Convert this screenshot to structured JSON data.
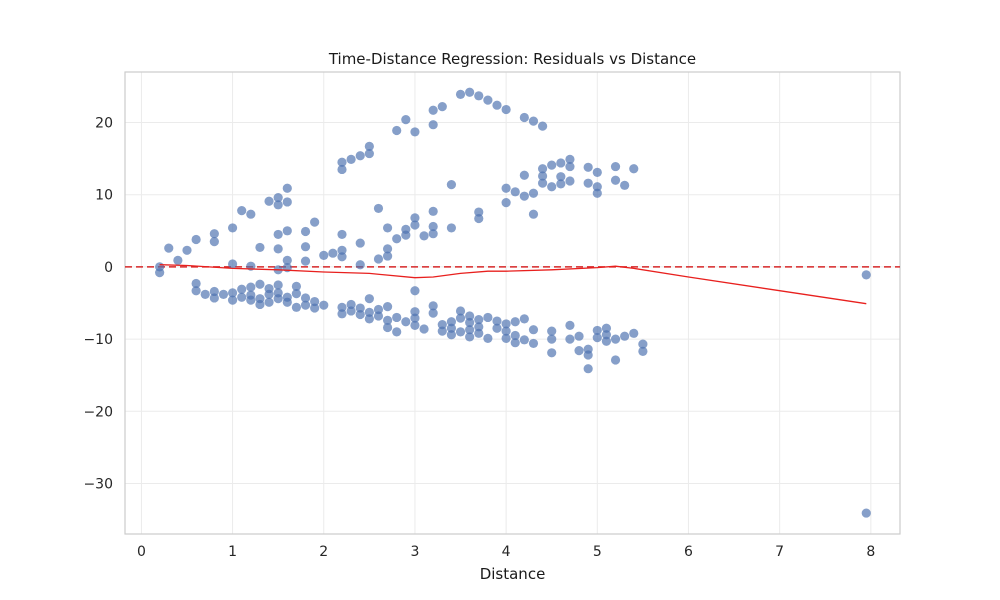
{
  "chart_data": {
    "type": "scatter",
    "title": "Time-Distance Regression: Residuals vs Distance",
    "xlabel": "Distance",
    "ylabel": "",
    "xlim": [
      -0.18,
      8.32
    ],
    "ylim": [
      -37.0,
      27.0
    ],
    "xticks": [
      0,
      1,
      2,
      3,
      4,
      5,
      6,
      7,
      8
    ],
    "yticks": [
      -30,
      -20,
      -10,
      0,
      10,
      20
    ],
    "grid": true,
    "reference_line": {
      "y": 0,
      "style": "dashed",
      "color": "#d62728"
    },
    "colors": {
      "points": "#4c72b0",
      "smooth": "#e8201e",
      "reference": "#d62728",
      "grid": "#ebebeb",
      "frame": "#cccccc"
    },
    "series": [
      {
        "type": "scatter",
        "points": [
          [
            0.2,
            0.0
          ],
          [
            0.2,
            -0.8
          ],
          [
            0.3,
            2.6
          ],
          [
            0.4,
            0.9
          ],
          [
            0.5,
            2.3
          ],
          [
            0.6,
            3.8
          ],
          [
            0.6,
            -2.3
          ],
          [
            0.6,
            -3.3
          ],
          [
            0.7,
            -3.8
          ],
          [
            0.8,
            4.6
          ],
          [
            0.8,
            3.5
          ],
          [
            0.8,
            -3.4
          ],
          [
            0.8,
            -4.3
          ],
          [
            0.9,
            -3.8
          ],
          [
            1.0,
            5.4
          ],
          [
            1.0,
            0.4
          ],
          [
            1.0,
            -3.6
          ],
          [
            1.0,
            -4.6
          ],
          [
            1.1,
            7.8
          ],
          [
            1.1,
            -3.1
          ],
          [
            1.1,
            -4.2
          ],
          [
            1.2,
            7.3
          ],
          [
            1.2,
            0.1
          ],
          [
            1.2,
            -2.8
          ],
          [
            1.2,
            -3.9
          ],
          [
            1.2,
            -4.6
          ],
          [
            1.3,
            2.7
          ],
          [
            1.3,
            -2.4
          ],
          [
            1.3,
            -4.4
          ],
          [
            1.3,
            -5.2
          ],
          [
            1.4,
            9.1
          ],
          [
            1.4,
            -3.0
          ],
          [
            1.4,
            -3.8
          ],
          [
            1.4,
            -4.9
          ],
          [
            1.5,
            9.6
          ],
          [
            1.5,
            8.6
          ],
          [
            1.5,
            4.5
          ],
          [
            1.5,
            2.5
          ],
          [
            1.5,
            -0.4
          ],
          [
            1.5,
            -2.5
          ],
          [
            1.5,
            -3.6
          ],
          [
            1.5,
            -4.4
          ],
          [
            1.6,
            10.9
          ],
          [
            1.6,
            9.0
          ],
          [
            1.6,
            5.0
          ],
          [
            1.6,
            0.9
          ],
          [
            1.6,
            -0.1
          ],
          [
            1.6,
            -4.2
          ],
          [
            1.6,
            -4.9
          ],
          [
            1.7,
            -2.7
          ],
          [
            1.7,
            -3.7
          ],
          [
            1.7,
            -5.6
          ],
          [
            1.8,
            4.9
          ],
          [
            1.8,
            2.8
          ],
          [
            1.8,
            0.8
          ],
          [
            1.8,
            -4.3
          ],
          [
            1.8,
            -5.3
          ],
          [
            1.9,
            6.2
          ],
          [
            1.9,
            -4.8
          ],
          [
            1.9,
            -5.7
          ],
          [
            2.0,
            1.6
          ],
          [
            2.0,
            -5.3
          ],
          [
            2.1,
            1.9
          ],
          [
            2.2,
            14.5
          ],
          [
            2.2,
            13.5
          ],
          [
            2.2,
            4.5
          ],
          [
            2.2,
            2.3
          ],
          [
            2.2,
            1.4
          ],
          [
            2.2,
            -5.6
          ],
          [
            2.2,
            -6.5
          ],
          [
            2.3,
            14.9
          ],
          [
            2.3,
            -5.2
          ],
          [
            2.3,
            -6.1
          ],
          [
            2.4,
            15.4
          ],
          [
            2.4,
            3.3
          ],
          [
            2.4,
            0.3
          ],
          [
            2.4,
            -5.7
          ],
          [
            2.4,
            -6.6
          ],
          [
            2.5,
            16.7
          ],
          [
            2.5,
            15.7
          ],
          [
            2.5,
            -4.4
          ],
          [
            2.5,
            -6.3
          ],
          [
            2.5,
            -7.2
          ],
          [
            2.6,
            8.1
          ],
          [
            2.6,
            1.1
          ],
          [
            2.6,
            -5.9
          ],
          [
            2.6,
            -6.8
          ],
          [
            2.7,
            5.4
          ],
          [
            2.7,
            2.5
          ],
          [
            2.7,
            1.5
          ],
          [
            2.7,
            -5.5
          ],
          [
            2.7,
            -7.4
          ],
          [
            2.7,
            -8.4
          ],
          [
            2.8,
            18.9
          ],
          [
            2.8,
            3.9
          ],
          [
            2.8,
            -7.0
          ],
          [
            2.8,
            -9.0
          ],
          [
            2.9,
            20.4
          ],
          [
            2.9,
            5.2
          ],
          [
            2.9,
            4.4
          ],
          [
            2.9,
            -7.6
          ],
          [
            3.0,
            18.7
          ],
          [
            3.0,
            6.8
          ],
          [
            3.0,
            5.8
          ],
          [
            3.0,
            -3.3
          ],
          [
            3.0,
            -6.2
          ],
          [
            3.0,
            -7.1
          ],
          [
            3.0,
            -8.1
          ],
          [
            3.1,
            4.3
          ],
          [
            3.1,
            -8.6
          ],
          [
            3.2,
            21.7
          ],
          [
            3.2,
            19.7
          ],
          [
            3.2,
            7.7
          ],
          [
            3.2,
            5.6
          ],
          [
            3.2,
            4.6
          ],
          [
            3.2,
            -5.4
          ],
          [
            3.2,
            -6.4
          ],
          [
            3.3,
            22.2
          ],
          [
            3.3,
            -8.0
          ],
          [
            3.3,
            -8.9
          ],
          [
            3.4,
            11.4
          ],
          [
            3.4,
            5.4
          ],
          [
            3.4,
            -7.6
          ],
          [
            3.4,
            -8.5
          ],
          [
            3.4,
            -9.4
          ],
          [
            3.5,
            23.9
          ],
          [
            3.5,
            -6.1
          ],
          [
            3.5,
            -7.1
          ],
          [
            3.5,
            -9.0
          ],
          [
            3.6,
            24.2
          ],
          [
            3.6,
            -6.8
          ],
          [
            3.6,
            -7.7
          ],
          [
            3.6,
            -8.7
          ],
          [
            3.6,
            -9.7
          ],
          [
            3.7,
            23.7
          ],
          [
            3.7,
            7.6
          ],
          [
            3.7,
            6.7
          ],
          [
            3.7,
            -7.3
          ],
          [
            3.7,
            -8.3
          ],
          [
            3.7,
            -9.2
          ],
          [
            3.8,
            23.1
          ],
          [
            3.8,
            -7.0
          ],
          [
            3.8,
            -9.9
          ],
          [
            3.9,
            22.4
          ],
          [
            3.9,
            -7.5
          ],
          [
            3.9,
            -8.5
          ],
          [
            4.0,
            21.8
          ],
          [
            4.0,
            10.9
          ],
          [
            4.0,
            8.9
          ],
          [
            4.0,
            -7.9
          ],
          [
            4.0,
            -8.9
          ],
          [
            4.0,
            -9.9
          ],
          [
            4.1,
            10.4
          ],
          [
            4.1,
            -7.6
          ],
          [
            4.1,
            -9.5
          ],
          [
            4.1,
            -10.5
          ],
          [
            4.2,
            20.7
          ],
          [
            4.2,
            12.7
          ],
          [
            4.2,
            9.8
          ],
          [
            4.2,
            -7.2
          ],
          [
            4.2,
            -10.1
          ],
          [
            4.3,
            20.2
          ],
          [
            4.3,
            10.2
          ],
          [
            4.3,
            7.3
          ],
          [
            4.3,
            -8.7
          ],
          [
            4.3,
            -10.6
          ],
          [
            4.4,
            19.5
          ],
          [
            4.4,
            13.6
          ],
          [
            4.4,
            12.6
          ],
          [
            4.4,
            11.6
          ],
          [
            4.5,
            14.1
          ],
          [
            4.5,
            11.1
          ],
          [
            4.5,
            -8.9
          ],
          [
            4.5,
            -10.0
          ],
          [
            4.5,
            -11.9
          ],
          [
            4.6,
            14.4
          ],
          [
            4.6,
            12.5
          ],
          [
            4.6,
            11.5
          ],
          [
            4.7,
            14.9
          ],
          [
            4.7,
            13.9
          ],
          [
            4.7,
            11.9
          ],
          [
            4.7,
            -8.1
          ],
          [
            4.7,
            -10.0
          ],
          [
            4.8,
            -9.6
          ],
          [
            4.8,
            -11.6
          ],
          [
            4.9,
            13.8
          ],
          [
            4.9,
            11.6
          ],
          [
            4.9,
            -11.4
          ],
          [
            4.9,
            -12.2
          ],
          [
            4.9,
            -14.1
          ],
          [
            5.0,
            13.1
          ],
          [
            5.0,
            11.1
          ],
          [
            5.0,
            10.2
          ],
          [
            5.0,
            -8.8
          ],
          [
            5.0,
            -9.8
          ],
          [
            5.1,
            -8.5
          ],
          [
            5.1,
            -9.4
          ],
          [
            5.1,
            -10.3
          ],
          [
            5.2,
            13.9
          ],
          [
            5.2,
            12.0
          ],
          [
            5.2,
            -10.0
          ],
          [
            5.2,
            -12.9
          ],
          [
            5.3,
            11.3
          ],
          [
            5.3,
            -9.6
          ],
          [
            5.4,
            13.6
          ],
          [
            5.4,
            -9.2
          ],
          [
            5.5,
            -10.7
          ],
          [
            5.5,
            -11.7
          ],
          [
            7.95,
            -1.1
          ],
          [
            7.95,
            -34.1
          ]
        ]
      },
      {
        "type": "line",
        "points": [
          [
            0.2,
            0.3
          ],
          [
            0.5,
            0.2
          ],
          [
            1.0,
            -0.2
          ],
          [
            1.5,
            -0.4
          ],
          [
            2.0,
            -0.7
          ],
          [
            2.5,
            -0.9
          ],
          [
            3.0,
            -1.5
          ],
          [
            3.2,
            -1.4
          ],
          [
            3.5,
            -0.9
          ],
          [
            3.8,
            -0.6
          ],
          [
            4.0,
            -0.6
          ],
          [
            4.5,
            -0.4
          ],
          [
            5.0,
            -0.1
          ],
          [
            5.2,
            0.1
          ],
          [
            5.4,
            -0.2
          ],
          [
            6.0,
            -1.4
          ],
          [
            7.0,
            -3.3
          ],
          [
            7.95,
            -5.1
          ]
        ]
      }
    ]
  }
}
